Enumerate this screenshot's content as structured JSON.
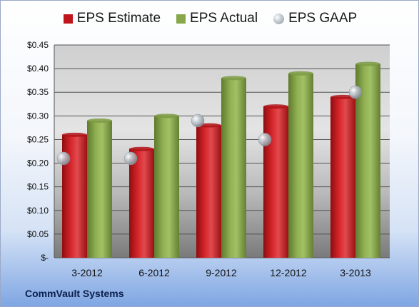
{
  "company": "CommVault Systems",
  "chart_data": {
    "type": "bar",
    "categories": [
      "3-2012",
      "6-2012",
      "9-2012",
      "12-2012",
      "3-2013"
    ],
    "series": [
      {
        "name": "EPS Estimate",
        "type": "bar",
        "color": "#c0151b",
        "values": [
          0.26,
          0.23,
          0.28,
          0.32,
          0.34
        ]
      },
      {
        "name": "EPS Actual",
        "type": "bar",
        "color": "#86a84a",
        "values": [
          0.29,
          0.3,
          0.38,
          0.39,
          0.41
        ]
      },
      {
        "name": "EPS GAAP",
        "type": "marker",
        "color": "#a9b3bd",
        "values": [
          0.21,
          0.21,
          0.29,
          0.25,
          0.35
        ]
      }
    ],
    "ylim": [
      0,
      0.45
    ],
    "yticks": [
      {
        "value": 0.45,
        "label": "$0.45"
      },
      {
        "value": 0.4,
        "label": "$0.40"
      },
      {
        "value": 0.35,
        "label": "$0.35"
      },
      {
        "value": 0.3,
        "label": "$0.30"
      },
      {
        "value": 0.25,
        "label": "$0.25"
      },
      {
        "value": 0.2,
        "label": "$0.20"
      },
      {
        "value": 0.15,
        "label": "$0.15"
      },
      {
        "value": 0.1,
        "label": "$0.10"
      },
      {
        "value": 0.05,
        "label": "$0.05"
      },
      {
        "value": 0,
        "label": "$-"
      }
    ],
    "grid": true,
    "legend": "top"
  }
}
